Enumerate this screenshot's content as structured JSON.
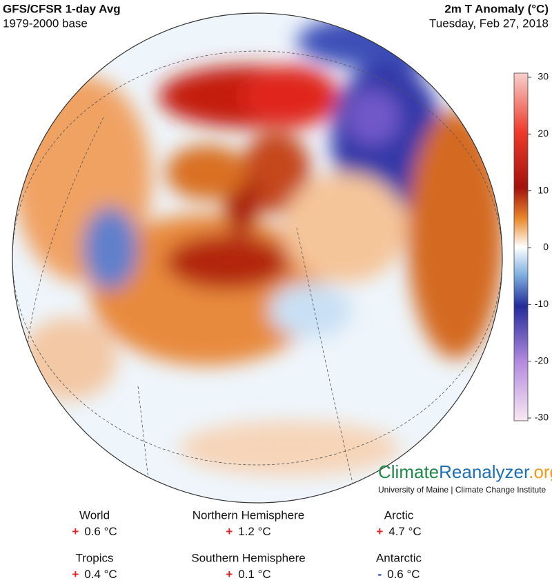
{
  "header": {
    "title": "GFS/CFSR 1-day Avg",
    "base": "1979-2000 base",
    "variable": "2m T Anomaly (°C)",
    "date": "Tuesday, Feb 27, 2018"
  },
  "colorbar": {
    "lim": [
      -30,
      30
    ],
    "ticks": [
      30,
      20,
      10,
      0,
      -10,
      -20,
      -30
    ]
  },
  "logo": {
    "climate": "Climate",
    "reanalyzer": "Reanalyzer",
    "org": ".org",
    "credit": "University of Maine | Climate Change Institute"
  },
  "stats": [
    {
      "label": "World",
      "sign": "+",
      "value": "0.6 °C"
    },
    {
      "label": "Northern Hemisphere",
      "sign": "+",
      "value": "1.2 °C"
    },
    {
      "label": "Arctic",
      "sign": "+",
      "value": "4.7 °C"
    },
    {
      "label": "Tropics",
      "sign": "+",
      "value": "0.4 °C"
    },
    {
      "label": "Southern Hemisphere",
      "sign": "+",
      "value": "0.1 °C"
    },
    {
      "label": "Antarctic",
      "sign": "-",
      "value": "0.6 °C"
    }
  ]
}
